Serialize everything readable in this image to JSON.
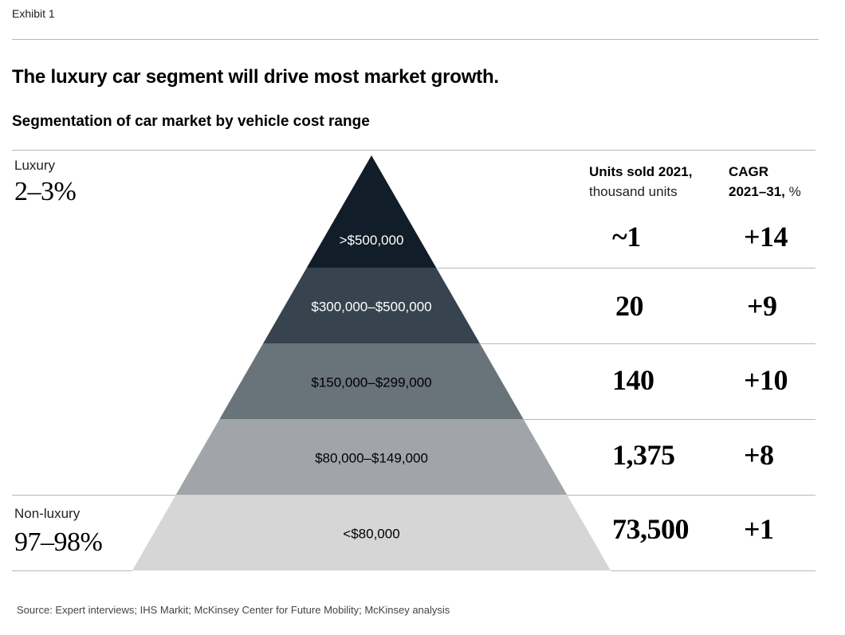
{
  "header": {
    "exhibit": "Exhibit 1",
    "title": "The luxury car segment will drive most market growth.",
    "subtitle": "Segmentation of car market by vehicle cost range"
  },
  "left_labels": {
    "luxury": {
      "label": "Luxury",
      "value": "2–3%"
    },
    "non_luxury": {
      "label": "Non-luxury",
      "value": "97–98%"
    }
  },
  "columns": {
    "units_head_bold": "Units sold 2021,",
    "units_head_rest": "thousand units",
    "cagr_head_bold_1": "CAGR",
    "cagr_head_bold_2": "2021–31,",
    "cagr_head_rest": "%"
  },
  "colors": {
    "tiers": [
      "#111d29",
      "#37444f",
      "#69737a",
      "#a1a5aa",
      "#d6d6d6"
    ],
    "tier_text": [
      "#ffffff",
      "#ffffff",
      "#000000",
      "#000000",
      "#000000"
    ]
  },
  "chart_data": {
    "type": "table",
    "categories": [
      ">$500,000",
      "$300,000–$500,000",
      "$150,000–$299,000",
      "$80,000–$149,000",
      "<$80,000"
    ],
    "series": [
      {
        "name": "Units sold 2021, thousand units",
        "values": [
          "~1",
          "20",
          "140",
          "1,375",
          "73,500"
        ]
      },
      {
        "name": "CAGR 2021–31, %",
        "values": [
          "+14",
          "+9",
          "+10",
          "+8",
          "+1"
        ]
      }
    ]
  },
  "footer": {
    "source": "Source: Expert interviews; IHS Markit; McKinsey Center for Future Mobility; McKinsey analysis"
  }
}
